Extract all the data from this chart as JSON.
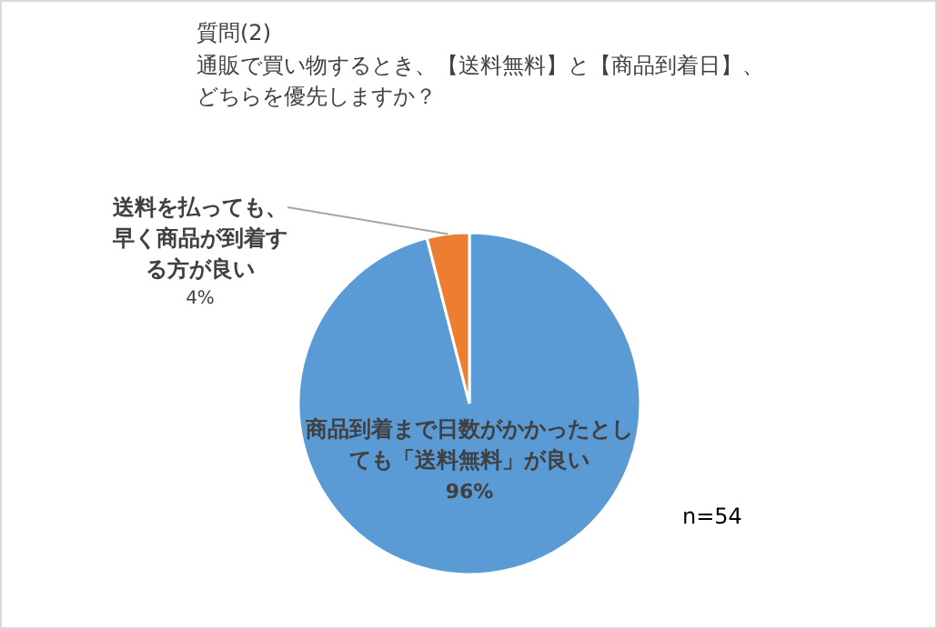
{
  "chart_data": {
    "type": "pie",
    "title": "質問(2)",
    "subtitle": "通販で買い物するとき、【送料無料】と【商品到着日】、どちらを優先しますか？",
    "categories": [
      "商品到着まで日数がかかったとしても「送料無料」が良い",
      "送料を払っても、早く商品が到着する方が良い"
    ],
    "values": [
      96,
      4
    ],
    "colors": [
      "#5b9bd5",
      "#ed7d31"
    ],
    "value_labels": [
      "96%",
      "4%"
    ],
    "annotations": [
      "n=54"
    ]
  }
}
